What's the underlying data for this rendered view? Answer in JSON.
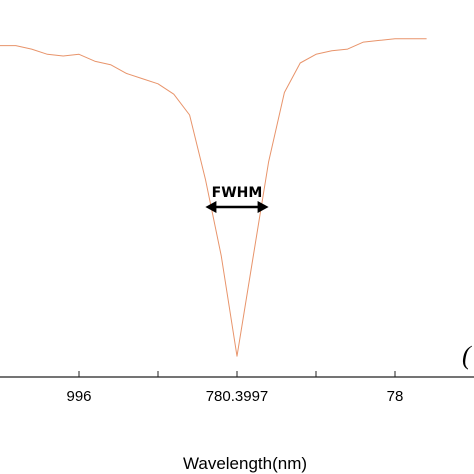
{
  "chart_data": {
    "type": "line",
    "xlabel": "Wavelength(nm)",
    "ylabel": "",
    "xlim": [
      780.39955,
      780.39985
    ],
    "ylim": [
      0.0,
      1.0
    ],
    "grid": false,
    "x_tick_labels": [
      {
        "value": 780.3996,
        "label": "996"
      },
      {
        "value": 780.39965,
        "label": ""
      },
      {
        "value": 780.3997,
        "label": "780.3997"
      },
      {
        "value": 780.39975,
        "label": ""
      },
      {
        "value": 780.3998,
        "label": "78"
      }
    ],
    "annotation": {
      "text": "FWHM",
      "x_start": 780.39968,
      "x_end": 780.39972,
      "y": 0.49
    },
    "partial_label": "(",
    "series": [
      {
        "color": "#e8946b",
        "x": [
          780.39955,
          780.39956,
          780.39957,
          780.39958,
          780.39959,
          780.3996,
          780.39961,
          780.39962,
          780.39963,
          780.39964,
          780.39965,
          780.39966,
          780.39967,
          780.39968,
          780.39969,
          780.3997,
          780.39971,
          780.39972,
          780.39973,
          780.39974,
          780.39975,
          780.39976,
          780.39977,
          780.39978,
          780.39979,
          780.3998,
          780.39981,
          780.39982
        ],
        "y": [
          0.955,
          0.955,
          0.945,
          0.93,
          0.925,
          0.93,
          0.91,
          0.9,
          0.875,
          0.86,
          0.845,
          0.815,
          0.755,
          0.57,
          0.35,
          0.06,
          0.34,
          0.62,
          0.82,
          0.905,
          0.93,
          0.94,
          0.945,
          0.965,
          0.97,
          0.975,
          0.975,
          0.975
        ]
      }
    ]
  }
}
